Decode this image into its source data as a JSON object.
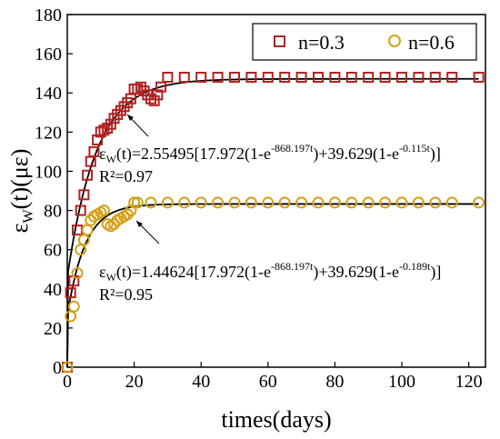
{
  "chart_data": {
    "type": "scatter",
    "xlabel": "times(days)",
    "ylabel": {
      "main": "ε",
      "sub": "W",
      "rest": "(t)(με)"
    },
    "xlim": [
      0,
      125
    ],
    "ylim": [
      0,
      180
    ],
    "xticks": [
      0,
      20,
      40,
      60,
      80,
      100,
      120
    ],
    "yticks": [
      0,
      20,
      40,
      60,
      80,
      100,
      120,
      140,
      160,
      180
    ],
    "legend_position": "top-right",
    "series": [
      {
        "name": "n=0.3",
        "marker": "square",
        "color": "#b22222",
        "x": [
          0,
          1,
          2,
          3,
          4,
          5,
          6,
          7,
          8,
          9,
          10,
          11,
          12,
          13,
          14,
          15,
          16,
          17,
          18,
          19,
          20,
          21,
          22,
          23,
          24,
          25,
          26,
          27,
          28,
          30,
          35,
          40,
          45,
          50,
          55,
          60,
          65,
          70,
          75,
          80,
          85,
          90,
          95,
          100,
          105,
          110,
          115,
          123
        ],
        "y": [
          0,
          38,
          44,
          70,
          80,
          88,
          98,
          105,
          110,
          116,
          120,
          121,
          122,
          124,
          127,
          129,
          131,
          133,
          135,
          137,
          142,
          142,
          143,
          141,
          139,
          137,
          136,
          139,
          143,
          148,
          148,
          148,
          148,
          148,
          148,
          148,
          148,
          148,
          148,
          148,
          148,
          148,
          148,
          148,
          148,
          148,
          148,
          148
        ]
      },
      {
        "name": "n=0.6",
        "marker": "circle",
        "color": "#d4a017",
        "x": [
          0,
          1,
          2,
          3,
          4,
          5,
          6,
          7,
          8,
          9,
          10,
          11,
          12,
          13,
          14,
          15,
          16,
          17,
          18,
          19,
          20,
          21,
          25,
          30,
          35,
          40,
          45,
          50,
          55,
          60,
          65,
          70,
          75,
          80,
          85,
          90,
          95,
          100,
          105,
          110,
          115,
          123
        ],
        "y": [
          0,
          26,
          31,
          48,
          60,
          65,
          70,
          75,
          77,
          78,
          79,
          80,
          73,
          72,
          73,
          75,
          76,
          77,
          78,
          80,
          84,
          84,
          84,
          84,
          84,
          84,
          84,
          84,
          84,
          84,
          84,
          84,
          84,
          84,
          84,
          84,
          84,
          84,
          84,
          84,
          84,
          84
        ]
      }
    ],
    "fit_curves": [
      {
        "series": "n=0.3",
        "k": 2.55495,
        "a": 17.972,
        "b": 868.197,
        "c": 39.629,
        "d": 0.115,
        "color": "#000000"
      },
      {
        "series": "n=0.6",
        "k": 1.44624,
        "a": 17.972,
        "b": 868.197,
        "c": 39.629,
        "d": 0.189,
        "color": "#000000"
      }
    ],
    "annotations": [
      {
        "eq_parts": {
          "eps": "ε",
          "sub": "W",
          "lhs": "(t)=2.55495[17.972(1-e",
          "exp1": "-868.197t",
          "mid": ")+39.629(1-e",
          "exp2": "-0.115t",
          "end": ")]"
        },
        "r2": "R²=0.97"
      },
      {
        "eq_parts": {
          "eps": "ε",
          "sub": "W",
          "lhs": "(t)=1.44624[17.972(1-e",
          "exp1": "-868.197t",
          "mid": ")+39.629(1-e",
          "exp2": "-0.189t",
          "end": ")]"
        },
        "r2": "R²=0.95"
      }
    ]
  }
}
